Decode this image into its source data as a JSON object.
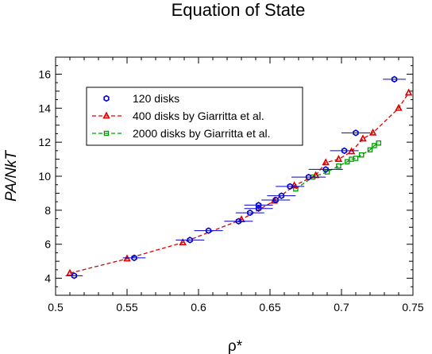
{
  "chart_data": {
    "type": "scatter",
    "title": "Equation of State",
    "xlabel": "ρ*",
    "ylabel": "PA/NkT",
    "xlim": [
      0.5,
      0.75
    ],
    "ylim": [
      3,
      17
    ],
    "xticks": [
      "0.5",
      "0.55",
      "0.6",
      "0.65",
      "0.7",
      "0.75"
    ],
    "yticks": [
      "4",
      "6",
      "8",
      "10",
      "12",
      "14",
      "16"
    ],
    "legend_position": "top-left",
    "grid": false,
    "series": [
      {
        "name": "120 disks",
        "color": "#0000cc",
        "marker": "hexagon-open",
        "line": "none",
        "x": [
          0.513,
          0.555,
          0.594,
          0.607,
          0.628,
          0.636,
          0.642,
          0.642,
          0.654,
          0.658,
          0.664,
          0.677,
          0.689,
          0.702,
          0.71,
          0.737
        ],
        "y": [
          4.15,
          5.2,
          6.25,
          6.8,
          7.35,
          7.85,
          8.1,
          8.3,
          8.6,
          8.85,
          9.4,
          9.95,
          10.4,
          11.5,
          12.55,
          15.7
        ],
        "xerr": [
          0.006,
          0.008,
          0.01,
          0.01,
          0.01,
          0.01,
          0.01,
          0.01,
          0.01,
          0.01,
          0.01,
          0.012,
          0.012,
          0.01,
          0.01,
          0.008
        ]
      },
      {
        "name": "400 disks by Giarritta et al.",
        "color": "#dd0000",
        "marker": "triangle-open",
        "line": "dashed",
        "x": [
          0.51,
          0.55,
          0.589,
          0.63,
          0.653,
          0.667,
          0.682,
          0.689,
          0.698,
          0.707,
          0.715,
          0.722,
          0.74,
          0.747
        ],
        "y": [
          4.3,
          5.15,
          6.1,
          7.45,
          8.55,
          9.45,
          10.05,
          10.8,
          11.0,
          11.45,
          12.2,
          12.55,
          14.0,
          14.9
        ]
      },
      {
        "name": "2000 disks by Giarritta et al.",
        "color": "#009900",
        "marker": "square-open",
        "line": "dashed",
        "x": [
          0.668,
          0.68,
          0.69,
          0.698,
          0.704,
          0.707,
          0.71,
          0.714,
          0.72,
          0.723,
          0.726
        ],
        "y": [
          9.25,
          9.95,
          10.25,
          10.6,
          10.85,
          11.0,
          11.05,
          11.25,
          11.55,
          11.8,
          11.95
        ]
      }
    ]
  }
}
